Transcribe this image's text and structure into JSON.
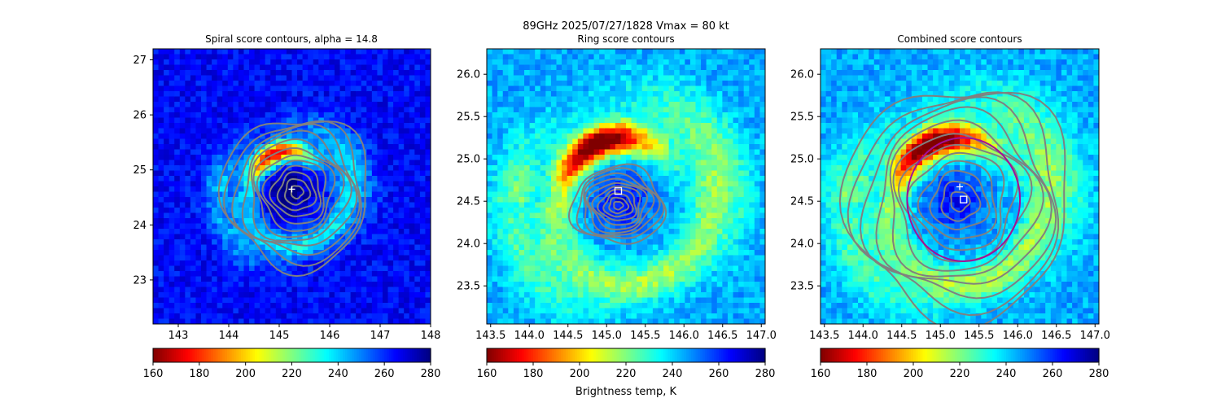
{
  "figure": {
    "suptitle_line1": "89GHz  2025/07/27/1828    Vmax = 80 kt",
    "colorbar_label": "Brightness temp, K"
  },
  "colormap": {
    "name": "jet",
    "stops": [
      "#800000",
      "#ff0000",
      "#ff8000",
      "#ffff00",
      "#80ff80",
      "#00ffff",
      "#0080ff",
      "#0000ff",
      "#000080"
    ]
  },
  "colors": {
    "contour": "#808080",
    "ring": "#a0109a",
    "marker": "#ffffff"
  },
  "chart_data": [
    {
      "type": "heatmap",
      "title": "Spiral score contours, alpha = 14.8",
      "xlim": [
        142.5,
        148
      ],
      "ylim": [
        22.2,
        27.2
      ],
      "xticks": [
        "143",
        "144",
        "145",
        "146",
        "147",
        "148"
      ],
      "xtick_values": [
        143,
        144,
        145,
        146,
        147,
        148
      ],
      "yticks": [
        "23",
        "24",
        "25",
        "26",
        "27"
      ],
      "ytick_values": [
        23,
        24,
        25,
        26,
        27
      ],
      "center_marker": {
        "symbol": "+",
        "x": 145.25,
        "y": 24.65
      },
      "field": {
        "eye": [
          145.2,
          24.6
        ],
        "eyewall_peak": [
          144.9,
          25.3
        ],
        "min_temp": 160,
        "background": 265
      },
      "contour_center": [
        145.35,
        24.6
      ],
      "colorbar": {
        "min": 160,
        "max": 280,
        "ticks": [
          "160",
          "180",
          "200",
          "220",
          "240",
          "260",
          "280"
        ]
      }
    },
    {
      "type": "heatmap",
      "title": "Ring score contours",
      "xlim": [
        143.45,
        147.05
      ],
      "ylim": [
        23.05,
        26.3
      ],
      "xticks": [
        "143.5",
        "144.0",
        "144.5",
        "145.0",
        "145.5",
        "146.0",
        "146.5",
        "147.0"
      ],
      "xtick_values": [
        143.5,
        144.0,
        144.5,
        145.0,
        145.5,
        146.0,
        146.5,
        147.0
      ],
      "yticks": [
        "23.5",
        "24.0",
        "24.5",
        "25.0",
        "25.5",
        "26.0"
      ],
      "ytick_values": [
        23.5,
        24.0,
        24.5,
        25.0,
        25.5,
        26.0
      ],
      "square_marker": {
        "symbol": "square",
        "x": 145.15,
        "y": 24.62
      },
      "field": {
        "eye": [
          145.2,
          24.5
        ],
        "eyewall_peak": [
          144.8,
          25.4
        ],
        "min_temp": 160,
        "background": 245
      },
      "contour_center": [
        145.15,
        24.45
      ],
      "colorbar": {
        "min": 160,
        "max": 280,
        "ticks": [
          "160",
          "180",
          "200",
          "220",
          "240",
          "260",
          "280"
        ]
      }
    },
    {
      "type": "heatmap",
      "title": "Combined score contours",
      "xlim": [
        143.45,
        147.05
      ],
      "ylim": [
        23.05,
        26.3
      ],
      "xticks": [
        "143.5",
        "144.0",
        "144.5",
        "145.0",
        "145.5",
        "146.0",
        "146.5",
        "147.0"
      ],
      "xtick_values": [
        143.5,
        144.0,
        144.5,
        145.0,
        145.5,
        146.0,
        146.5,
        147.0
      ],
      "yticks": [
        "23.5",
        "24.0",
        "24.5",
        "25.0",
        "25.5",
        "26.0"
      ],
      "ytick_values": [
        23.5,
        24.0,
        24.5,
        25.0,
        25.5,
        26.0
      ],
      "center_marker": {
        "symbol": "+",
        "x": 145.25,
        "y": 24.67
      },
      "square_marker": {
        "symbol": "square",
        "x": 145.3,
        "y": 24.52
      },
      "ring": {
        "center": [
          145.3,
          24.52
        ],
        "radius_deg": 0.73
      },
      "field": {
        "eye": [
          145.2,
          24.5
        ],
        "eyewall_peak": [
          144.8,
          25.4
        ],
        "min_temp": 160,
        "background": 245
      },
      "contour_center": [
        145.25,
        24.5
      ],
      "colorbar": {
        "min": 160,
        "max": 280,
        "ticks": [
          "160",
          "180",
          "200",
          "220",
          "240",
          "260",
          "280"
        ]
      }
    }
  ]
}
